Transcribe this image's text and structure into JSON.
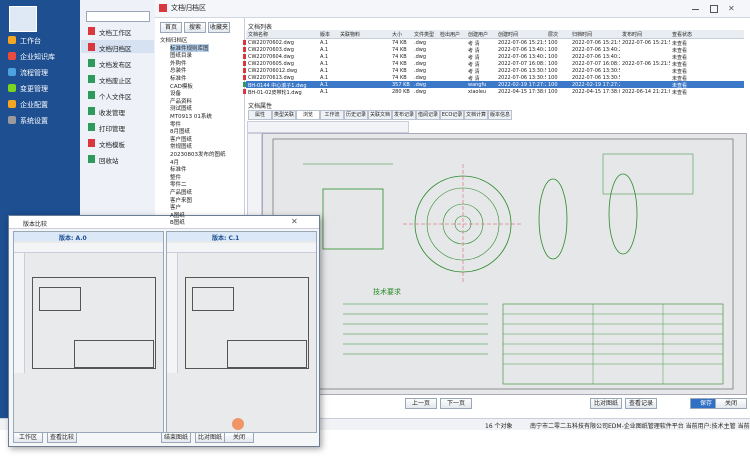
{
  "sidebar": {
    "items": [
      "工作台",
      "企业知识库",
      "流程管理",
      "变更管理",
      "企业配置",
      "系统设置"
    ]
  },
  "modules": {
    "items": [
      "文档工作区",
      "文档归档区",
      "文档发布区",
      "文档废止区",
      "个人文件区",
      "收发管理",
      "打印管理",
      "文档模板",
      "回收站"
    ]
  },
  "header": {
    "title": "文档归档区"
  },
  "tree": {
    "toolbar": [
      "首页",
      "搜索",
      "收藏夹"
    ],
    "nodes": [
      "文档归档区",
      "标准件规则库图",
      "图纸目录",
      "外购件",
      "总装件",
      "标准件",
      "CAD模板",
      "设备",
      "产品资料",
      "测试图纸",
      "MT0913 01系统",
      "零件",
      "8月图纸",
      "客户图纸",
      "常规图纸",
      "20230803发布的图纸",
      "4月",
      "标准件",
      "整件",
      "零件二",
      "产品图纸",
      "客户来图",
      "客户",
      "A图纸",
      "B图纸"
    ]
  },
  "doc_list": {
    "title": "文档列表",
    "columns": [
      "文档名称",
      "版本",
      "关联物料",
      "大小",
      "文件类型",
      "检出用户",
      "创建用户",
      "创建时间",
      "层次",
      "归档时间",
      "发布时间",
      "查看状态"
    ],
    "rows": [
      {
        "name": "CW22070602.dwg",
        "version": "A.1",
        "size": "74 KB",
        "type": ".dwg",
        "creator": "考 清",
        "created": "2022-07-06 15:21:57",
        "level": "100",
        "archived": "2022-07-06 15:21:57",
        "published": "2022-07-06 15:21:57",
        "status": "未查看"
      },
      {
        "name": "CW22070603.dwg",
        "version": "A.1",
        "size": "74 KB",
        "type": ".dwg",
        "creator": "考 清",
        "created": "2022-07-06 13:40:25",
        "level": "100",
        "archived": "2022-07-06 13:40:25",
        "status": "未查看"
      },
      {
        "name": "CW22070604.dwg",
        "version": "A.1",
        "size": "74 KB",
        "type": ".dwg",
        "creator": "考 清",
        "created": "2022-07-06 13:40:25",
        "level": "100",
        "archived": "2022-07-06 13:40:25",
        "status": "未查看"
      },
      {
        "name": "CW22070605.dwg",
        "version": "A.1",
        "size": "74 KB",
        "type": ".dwg",
        "creator": "考 清",
        "created": "2022-07-07 16:08:15",
        "level": "100",
        "archived": "2022-07-07 16:08:15",
        "published": "2022-07-06 15:21:57",
        "status": "未查看"
      },
      {
        "name": "CW220706012.dwg",
        "version": "A.1",
        "size": "74 KB",
        "type": ".dwg",
        "creator": "考 清",
        "created": "2022-07-06 13:30:57",
        "level": "100",
        "archived": "2022-07-06 13:30:57",
        "status": "未查看"
      },
      {
        "name": "CW22070613.dwg",
        "version": "A.1",
        "size": "74 KB",
        "type": ".dwg",
        "creator": "考 清",
        "created": "2022-07-06 13:30:57",
        "level": "100",
        "archived": "2022-07-06 13:30:57",
        "status": "未查看"
      },
      {
        "name": "BH-0144 中心滚子1.dwg",
        "version": "A.1",
        "size": "357 KB",
        "type": ".dwg",
        "creator": "wangfu",
        "created": "2022-02-19 17:27:26",
        "level": "100",
        "archived": "2022-02-19 17:27:26",
        "status": "未查看"
      },
      {
        "name": "BH-01-02皮带轮1.dwg",
        "version": "A.1",
        "size": "280 KB",
        "type": ".dwg",
        "creator": "xiaoleu",
        "created": "2022-04-15 17:38:08",
        "level": "100",
        "archived": "2022-04-15 17:38:08",
        "published": "2022-06-14 21:21:05",
        "status": "未查看"
      }
    ]
  },
  "tabs": {
    "title": "文档属性",
    "items": [
      "属性",
      "类型关联",
      "浏览",
      "工作流",
      "历史记录",
      "关联文档",
      "发布记录",
      "借阅记录",
      "ECO记录",
      "文档计算",
      "版本信息"
    ]
  },
  "drawing": {
    "title": "技术要求"
  },
  "buttons": [
    "上一页",
    "下一页",
    "比对图纸",
    "查看记录",
    "保存",
    "关闭"
  ],
  "status": {
    "count": "16 个对象",
    "info": "南宁市二零二五科技有限公司EDM-企业图纸管理软件平台   当前用户:技术主管   当前位置:文件全区"
  },
  "compare": {
    "title": "版本比较",
    "left_version": "版本: A.0",
    "right_version": "版本: C.1",
    "buttons": [
      "工作区",
      "查看比较",
      "结束图纸",
      "比对图纸",
      "关闭"
    ]
  }
}
